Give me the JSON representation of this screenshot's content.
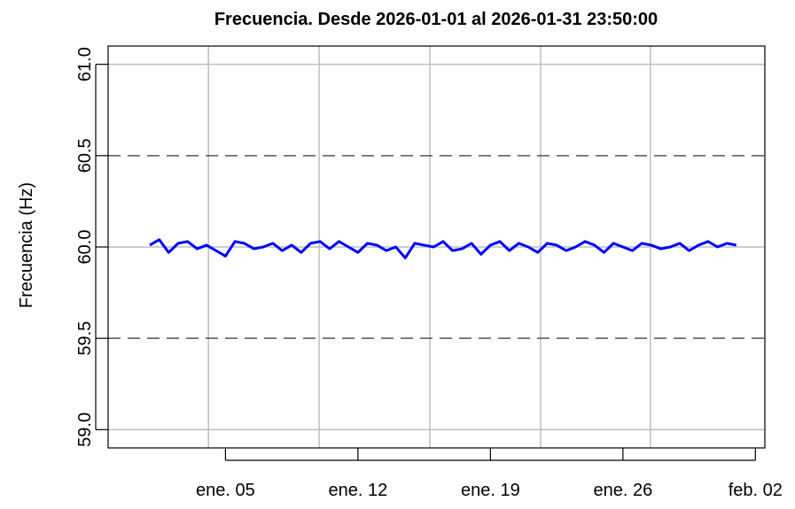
{
  "chart_data": {
    "type": "line",
    "title": "Frecuencia. Desde  2026-01-01  al  2026-01-31 23:50:00",
    "y_label": "Frecuencia (Hz)",
    "series": [
      {
        "color": "#0000ff",
        "x": [
          0,
          0.5,
          1,
          1.5,
          2,
          2.5,
          3,
          3.5,
          4,
          4.5,
          5,
          5.5,
          6,
          6.5,
          7,
          7.5,
          8,
          8.5,
          9,
          9.5,
          10,
          10.5,
          11,
          11.5,
          12,
          12.5,
          13,
          13.5,
          14,
          14.5,
          15,
          15.5,
          16,
          16.5,
          17,
          17.5,
          18,
          18.5,
          19,
          19.5,
          20,
          20.5,
          21,
          21.5,
          22,
          22.5,
          23,
          23.5,
          24,
          24.5,
          25,
          25.5,
          26,
          26.5,
          27,
          27.5,
          28,
          28.5,
          29,
          29.5,
          30,
          30.5,
          30.99
        ],
        "values": [
          60.01,
          60.04,
          59.97,
          60.02,
          60.03,
          59.99,
          60.01,
          59.98,
          59.95,
          60.03,
          60.02,
          59.99,
          60.0,
          60.02,
          59.98,
          60.01,
          59.97,
          60.02,
          60.03,
          59.99,
          60.03,
          60.0,
          59.97,
          60.02,
          60.01,
          59.98,
          60.0,
          59.94,
          60.02,
          60.01,
          60.0,
          60.03,
          59.98,
          59.99,
          60.02,
          59.96,
          60.01,
          60.03,
          59.98,
          60.02,
          60.0,
          59.97,
          60.02,
          60.01,
          59.98,
          60.0,
          60.03,
          60.01,
          59.97,
          60.02,
          60.0,
          59.98,
          60.02,
          60.01,
          59.99,
          60.0,
          60.02,
          59.98,
          60.01,
          60.03,
          60.0,
          60.02,
          60.01
        ]
      }
    ],
    "xlim": [
      -2.2,
      32.5
    ],
    "xticks": [
      {
        "value": 4,
        "label": "ene. 05"
      },
      {
        "value": 11,
        "label": "ene. 12"
      },
      {
        "value": 18,
        "label": "ene. 19"
      },
      {
        "value": 25,
        "label": "ene. 26"
      },
      {
        "value": 32,
        "label": "feb. 02"
      }
    ],
    "ylim": [
      58.9,
      61.1
    ],
    "yticks": [
      {
        "value": 59,
        "label": "59.0"
      },
      {
        "value": 59.5,
        "label": "59.5"
      },
      {
        "value": 60,
        "label": "60.0"
      },
      {
        "value": 60.5,
        "label": "60.5"
      },
      {
        "value": 61,
        "label": "61.0"
      }
    ],
    "xgrid": [
      3.1,
      8.95,
      14.8,
      20.65,
      26.45
    ],
    "ygrid": [
      59,
      60,
      61
    ],
    "ref_lines": [
      59.5,
      60.5
    ]
  }
}
